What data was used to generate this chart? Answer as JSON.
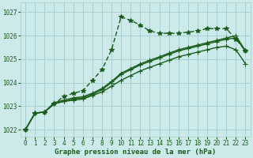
{
  "xlabel": "Graphe pression niveau de la mer (hPa)",
  "background_color": "#cceaea",
  "grid_color": "#a8d0d0",
  "line_color": "#1a5c1a",
  "ylim": [
    1021.7,
    1027.4
  ],
  "xlim": [
    -0.5,
    23.5
  ],
  "yticks": [
    1022,
    1023,
    1024,
    1025,
    1026,
    1027
  ],
  "xticks": [
    0,
    1,
    2,
    3,
    4,
    5,
    6,
    7,
    8,
    9,
    10,
    11,
    12,
    13,
    14,
    15,
    16,
    17,
    18,
    19,
    20,
    21,
    22,
    23
  ],
  "series": [
    {
      "x": [
        0,
        1,
        2,
        3,
        4,
        5,
        6,
        7,
        8,
        9,
        10,
        11,
        12,
        13,
        14,
        15,
        16,
        17,
        18,
        19,
        20,
        21,
        22,
        23
      ],
      "y": [
        1022.0,
        1022.7,
        1022.75,
        1023.1,
        1023.4,
        1023.55,
        1023.65,
        1024.1,
        1024.55,
        1025.4,
        1026.8,
        1026.65,
        1026.45,
        1026.2,
        1026.1,
        1026.1,
        1026.1,
        1026.15,
        1026.2,
        1026.3,
        1026.3,
        1026.3,
        1025.85,
        1025.35
      ],
      "style": "dotted",
      "marker": "*",
      "ms": 4,
      "lw": 1.0
    },
    {
      "x": [
        0,
        1,
        2,
        3,
        4,
        5,
        6,
        7,
        8,
        9,
        10,
        11,
        12,
        13,
        14,
        15,
        16,
        17,
        18,
        19,
        20,
        21,
        22,
        23
      ],
      "y": [
        1022.0,
        1022.7,
        1022.75,
        1023.1,
        1023.2,
        1023.25,
        1023.3,
        1023.45,
        1023.6,
        1023.85,
        1024.1,
        1024.3,
        1024.5,
        1024.65,
        1024.8,
        1024.95,
        1025.1,
        1025.2,
        1025.3,
        1025.4,
        1025.5,
        1025.55,
        1025.4,
        1024.8
      ],
      "style": "solid",
      "marker": "+",
      "ms": 4,
      "lw": 1.0
    },
    {
      "x": [
        0,
        1,
        2,
        3,
        4,
        5,
        6,
        7,
        8,
        9,
        10,
        11,
        12,
        13,
        14,
        15,
        16,
        17,
        18,
        19,
        20,
        21,
        22,
        23
      ],
      "y": [
        1022.0,
        1022.7,
        1022.75,
        1023.1,
        1023.2,
        1023.3,
        1023.35,
        1023.5,
        1023.7,
        1024.0,
        1024.35,
        1024.55,
        1024.75,
        1024.9,
        1025.05,
        1025.2,
        1025.35,
        1025.45,
        1025.55,
        1025.65,
        1025.75,
        1025.85,
        1025.9,
        1025.35
      ],
      "style": "solid",
      "marker": "+",
      "ms": 4,
      "lw": 1.0
    },
    {
      "x": [
        0,
        1,
        2,
        3,
        4,
        5,
        6,
        7,
        8,
        9,
        10,
        11,
        12,
        13,
        14,
        15,
        16,
        17,
        18,
        19,
        20,
        21,
        22,
        23
      ],
      "y": [
        1022.0,
        1022.7,
        1022.75,
        1023.15,
        1023.25,
        1023.35,
        1023.4,
        1023.55,
        1023.75,
        1024.05,
        1024.4,
        1024.6,
        1024.8,
        1024.95,
        1025.1,
        1025.25,
        1025.4,
        1025.5,
        1025.6,
        1025.7,
        1025.8,
        1025.9,
        1026.0,
        1025.35
      ],
      "style": "solid",
      "marker": "+",
      "ms": 4,
      "lw": 1.0
    }
  ],
  "tick_fontsize": 5.5,
  "label_fontsize": 6.5,
  "tick_color": "#1a5c1a",
  "label_color": "#1a5c1a"
}
